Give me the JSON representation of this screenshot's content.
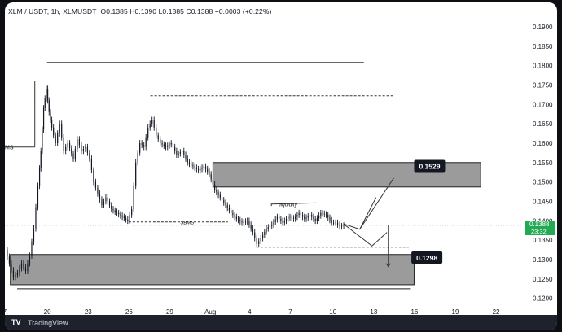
{
  "header": {
    "symbol": "XLM / USDT, 1h, XLMUSDT",
    "ohlc": "O0.1385  H0.1390  L0.1385  C0.1388  +0.0003 (+0.22%)"
  },
  "footer": {
    "brand": "TradingView"
  },
  "price_label": {
    "price": "0.1388",
    "countdown": "23:32"
  },
  "chart_data": {
    "type": "candlestick",
    "xlabel": "",
    "ylabel": "",
    "x_ticks": [
      "7",
      "20",
      "23",
      "26",
      "29",
      "Aug",
      "4",
      "7",
      "10",
      "13",
      "16",
      "19",
      "22"
    ],
    "x_tick_positions": [
      17,
      20,
      23,
      26,
      29,
      32,
      35,
      38,
      41,
      44,
      47,
      50,
      53
    ],
    "y_ticks": [
      "0.1900",
      "0.1850",
      "0.1800",
      "0.1750",
      "0.1700",
      "0.1650",
      "0.1600",
      "0.1550",
      "0.1500",
      "0.1450",
      "0.1400",
      "0.1350",
      "0.1300",
      "0.1250",
      "0.1200"
    ],
    "ylim": [
      0.1195,
      0.1925
    ],
    "xlim": [
      16.9,
      55.0
    ],
    "grid": false,
    "current_price": 0.1388,
    "price_path": [
      [
        17.0,
        0.1325
      ],
      [
        17.3,
        0.129
      ],
      [
        17.6,
        0.1255
      ],
      [
        17.9,
        0.1265
      ],
      [
        18.2,
        0.129
      ],
      [
        18.5,
        0.127
      ],
      [
        18.8,
        0.131
      ],
      [
        19.1,
        0.138
      ],
      [
        19.4,
        0.149
      ],
      [
        19.6,
        0.158
      ],
      [
        19.8,
        0.169
      ],
      [
        20.0,
        0.174
      ],
      [
        20.2,
        0.168
      ],
      [
        20.4,
        0.164
      ],
      [
        20.7,
        0.16
      ],
      [
        21.0,
        0.165
      ],
      [
        21.3,
        0.158
      ],
      [
        21.6,
        0.16
      ],
      [
        22.0,
        0.156
      ],
      [
        22.3,
        0.161
      ],
      [
        22.6,
        0.158
      ],
      [
        22.9,
        0.159
      ],
      [
        23.2,
        0.156
      ],
      [
        23.5,
        0.15
      ],
      [
        23.8,
        0.147
      ],
      [
        24.1,
        0.144
      ],
      [
        24.4,
        0.146
      ],
      [
        24.8,
        0.143
      ],
      [
        25.2,
        0.142
      ],
      [
        25.6,
        0.141
      ],
      [
        26.0,
        0.14
      ],
      [
        26.3,
        0.143
      ],
      [
        26.6,
        0.155
      ],
      [
        26.9,
        0.16
      ],
      [
        27.2,
        0.159
      ],
      [
        27.5,
        0.164
      ],
      [
        27.8,
        0.166
      ],
      [
        28.1,
        0.162
      ],
      [
        28.4,
        0.16
      ],
      [
        28.8,
        0.159
      ],
      [
        29.2,
        0.16
      ],
      [
        29.6,
        0.157
      ],
      [
        30.0,
        0.158
      ],
      [
        30.4,
        0.155
      ],
      [
        30.8,
        0.154
      ],
      [
        31.2,
        0.153
      ],
      [
        31.6,
        0.154
      ],
      [
        32.0,
        0.152
      ],
      [
        32.4,
        0.148
      ],
      [
        32.8,
        0.146
      ],
      [
        33.2,
        0.144
      ],
      [
        33.6,
        0.142
      ],
      [
        34.0,
        0.1405
      ],
      [
        34.4,
        0.1395
      ],
      [
        34.8,
        0.14
      ],
      [
        35.2,
        0.137
      ],
      [
        35.5,
        0.134
      ],
      [
        35.8,
        0.1355
      ],
      [
        36.2,
        0.138
      ],
      [
        36.6,
        0.139
      ],
      [
        37.0,
        0.141
      ],
      [
        37.4,
        0.1395
      ],
      [
        37.8,
        0.141
      ],
      [
        38.2,
        0.1405
      ],
      [
        38.6,
        0.142
      ],
      [
        39.0,
        0.1405
      ],
      [
        39.4,
        0.1415
      ],
      [
        39.8,
        0.14
      ],
      [
        40.2,
        0.142
      ],
      [
        40.6,
        0.1415
      ],
      [
        41.0,
        0.1395
      ],
      [
        41.3,
        0.1395
      ],
      [
        41.6,
        0.1385
      ],
      [
        41.9,
        0.1388
      ]
    ],
    "annotations": {
      "ms_label": "MS",
      "sbms_label": "SBMS",
      "liquidity_label": "liquidity",
      "ms_level": 0.159,
      "top_line": 0.1808,
      "dashed_high": 0.1722,
      "sbms_level": 0.1397,
      "dashed_low": 0.1332,
      "upper_zone": {
        "top": 0.155,
        "bottom": 0.1487,
        "from": 32.2,
        "to": 51.9
      },
      "lower_zone": {
        "top": 0.1313,
        "bottom": 0.1235,
        "from": 17.3,
        "to": 47.0
      },
      "target_up": "0.1529",
      "target_down": "0.1298"
    }
  }
}
